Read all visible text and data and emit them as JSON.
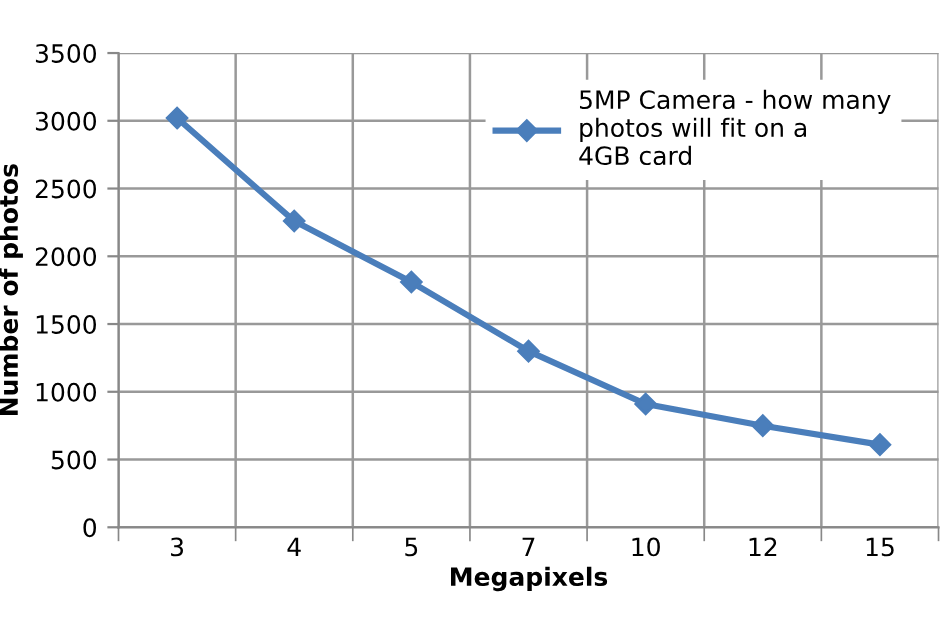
{
  "chart_data": {
    "type": "line",
    "xlabel": "Megapixels",
    "ylabel": "Number of photos",
    "categories": [
      "3",
      "4",
      "5",
      "7",
      "10",
      "12",
      "15"
    ],
    "series": [
      {
        "name": "5MP Camera - how many photos will fit on a 4GB card",
        "color": "#4a7ebb",
        "values": [
          3020,
          2260,
          1810,
          1300,
          910,
          750,
          610
        ]
      }
    ],
    "ylim": [
      0,
      3500
    ],
    "yticks": [
      0,
      500,
      1000,
      1500,
      2000,
      2500,
      3000,
      3500
    ],
    "grid": true,
    "legend": "top right",
    "marker": "diamond",
    "line_style": "solid"
  }
}
